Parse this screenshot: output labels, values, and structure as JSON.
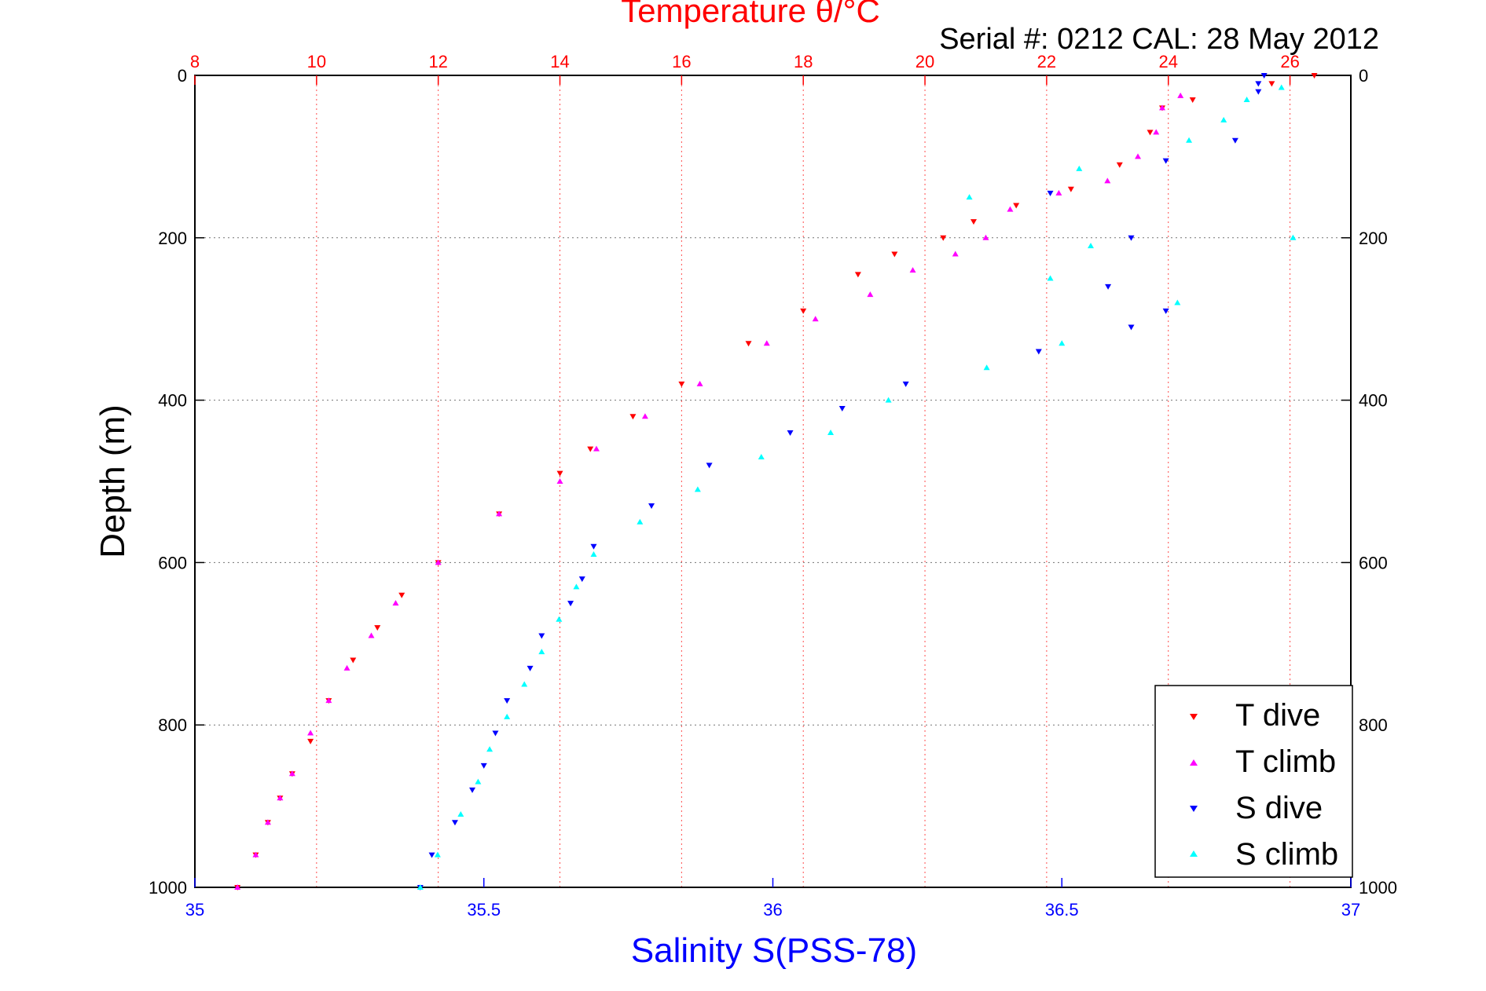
{
  "chart_data": {
    "type": "scatter",
    "title": "Temperature θ/°C",
    "subtitle": "Serial #: 0212  CAL: 28 May 2012",
    "ylabel": "Depth (m)",
    "xlabel_bottom": "Salinity S(PSS-78)",
    "xlabel_top": "Temperature θ/°C",
    "ylim": [
      0,
      1000
    ],
    "y_reversed": true,
    "y_ticks": [
      "0",
      "200",
      "400",
      "600",
      "800",
      "1000"
    ],
    "x_bottom_lim": [
      35,
      37
    ],
    "x_bottom_ticks": [
      "35",
      "35.5",
      "36",
      "36.5",
      "37"
    ],
    "x_top_lim": [
      8,
      27
    ],
    "x_top_ticks": [
      "8",
      "10",
      "12",
      "14",
      "16",
      "18",
      "20",
      "22",
      "24",
      "26"
    ],
    "grid": true,
    "legend_position": "bottom-right",
    "colors": {
      "t_dive": "#ff0000",
      "t_climb": "#ff00ff",
      "s_dive": "#0000ff",
      "s_climb": "#00ffff",
      "title": "#ff0000",
      "bottom_axis": "#0000ff",
      "top_axis": "#ff0000"
    },
    "series": [
      {
        "name": "T dive",
        "axis": "top",
        "color": "#ff0000",
        "x": [
          26.4,
          25.7,
          24.4,
          23.9,
          23.7,
          23.2,
          22.4,
          21.5,
          20.8,
          20.3,
          19.5,
          18.9,
          18.0,
          17.1,
          16.0,
          15.2,
          14.5,
          14.0,
          13.0,
          12.0,
          11.4,
          11.0,
          10.6,
          10.2,
          9.9,
          9.6,
          9.4,
          9.2,
          9.0,
          8.7
        ],
        "y": [
          0,
          10,
          30,
          40,
          70,
          110,
          140,
          160,
          180,
          200,
          220,
          245,
          290,
          330,
          380,
          420,
          460,
          490,
          540,
          600,
          640,
          680,
          720,
          770,
          820,
          860,
          890,
          920,
          960,
          1000
        ]
      },
      {
        "name": "T climb",
        "axis": "top",
        "color": "#ff00ff",
        "x": [
          24.2,
          23.9,
          23.8,
          23.5,
          23.0,
          22.2,
          21.4,
          21.0,
          20.5,
          19.8,
          19.1,
          18.2,
          17.4,
          16.3,
          15.4,
          14.6,
          14.0,
          13.0,
          12.0,
          11.3,
          10.9,
          10.5,
          10.2,
          9.9,
          9.6,
          9.4,
          9.2,
          9.0,
          8.7
        ],
        "y": [
          25,
          40,
          70,
          100,
          130,
          145,
          165,
          200,
          220,
          240,
          270,
          300,
          330,
          380,
          420,
          460,
          500,
          540,
          600,
          650,
          690,
          730,
          770,
          810,
          860,
          890,
          920,
          960,
          1000
        ]
      },
      {
        "name": "S dive",
        "axis": "bottom",
        "color": "#0000ff",
        "x": [
          36.85,
          36.84,
          36.84,
          36.8,
          36.68,
          36.48,
          36.62,
          36.58,
          36.68,
          36.62,
          36.46,
          36.23,
          36.12,
          36.03,
          35.89,
          35.79,
          35.69,
          35.67,
          35.65,
          35.6,
          35.58,
          35.54,
          35.52,
          35.5,
          35.48,
          35.45,
          35.41,
          35.39
        ],
        "y": [
          0,
          10,
          20,
          80,
          105,
          145,
          200,
          260,
          290,
          310,
          340,
          380,
          410,
          440,
          480,
          530,
          580,
          620,
          650,
          690,
          730,
          770,
          810,
          850,
          880,
          920,
          960,
          1000
        ]
      },
      {
        "name": "S climb",
        "axis": "bottom",
        "color": "#00ffff",
        "x": [
          36.88,
          36.82,
          36.78,
          36.72,
          36.53,
          36.34,
          36.55,
          36.48,
          36.9,
          36.7,
          36.5,
          36.37,
          36.2,
          36.1,
          35.98,
          35.87,
          35.77,
          35.69,
          35.66,
          35.63,
          35.6,
          35.57,
          35.54,
          35.51,
          35.49,
          35.46,
          35.42,
          35.39
        ],
        "y": [
          15,
          30,
          55,
          80,
          115,
          150,
          210,
          250,
          200,
          280,
          330,
          360,
          400,
          440,
          470,
          510,
          550,
          590,
          630,
          670,
          710,
          750,
          790,
          830,
          870,
          910,
          960,
          1000
        ]
      }
    ],
    "legend": [
      "T dive",
      "T climb",
      "S dive",
      "S climb"
    ]
  }
}
